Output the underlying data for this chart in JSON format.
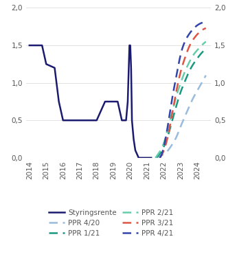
{
  "ylim": [
    0.0,
    2.0
  ],
  "xlim": [
    2013.8,
    2024.8
  ],
  "yticks": [
    0.0,
    0.5,
    1.0,
    1.5,
    2.0
  ],
  "xticks": [
    2014,
    2015,
    2016,
    2017,
    2018,
    2019,
    2020,
    2021,
    2022,
    2023,
    2024
  ],
  "styringsrente": {
    "x": [
      2014.0,
      2014.75,
      2015.0,
      2015.5,
      2015.75,
      2016.0,
      2016.5,
      2017.0,
      2017.5,
      2018.0,
      2018.5,
      2018.75,
      2019.0,
      2019.25,
      2019.5,
      2019.75,
      2019.85,
      2019.95,
      2020.0,
      2020.05,
      2020.1,
      2020.2,
      2020.3,
      2020.5,
      2020.75,
      2021.0,
      2021.25
    ],
    "y": [
      1.5,
      1.5,
      1.25,
      1.2,
      0.75,
      0.5,
      0.5,
      0.5,
      0.5,
      0.5,
      0.75,
      0.75,
      0.75,
      0.75,
      0.5,
      0.5,
      0.75,
      1.5,
      1.5,
      1.2,
      0.5,
      0.25,
      0.1,
      0.0,
      0.0,
      0.0,
      0.0
    ],
    "color": "#1a1a6e",
    "linewidth": 1.8
  },
  "ppr_420": {
    "label": "PPR 4/20",
    "x": [
      2021.5,
      2021.75,
      2022.0,
      2022.25,
      2022.5,
      2022.75,
      2023.0,
      2023.25,
      2023.5,
      2023.75,
      2024.0,
      2024.25,
      2024.5
    ],
    "y": [
      0.0,
      0.02,
      0.05,
      0.1,
      0.18,
      0.28,
      0.42,
      0.55,
      0.68,
      0.8,
      0.9,
      1.0,
      1.1
    ],
    "color": "#99bbdd",
    "linewidth": 1.8
  },
  "ppr_121": {
    "label": "PPR 1/21",
    "x": [
      2021.5,
      2021.75,
      2022.0,
      2022.25,
      2022.5,
      2022.75,
      2023.0,
      2023.25,
      2023.5,
      2023.75,
      2024.0,
      2024.25,
      2024.5
    ],
    "y": [
      0.0,
      0.05,
      0.15,
      0.3,
      0.5,
      0.7,
      0.88,
      1.02,
      1.15,
      1.25,
      1.33,
      1.4,
      1.45
    ],
    "color": "#1a9980",
    "linewidth": 1.8
  },
  "ppr_221": {
    "label": "PPR 2/21",
    "x": [
      2021.5,
      2021.75,
      2022.0,
      2022.25,
      2022.5,
      2022.75,
      2023.0,
      2023.25,
      2023.5,
      2023.75,
      2024.0,
      2024.25,
      2024.5
    ],
    "y": [
      0.0,
      0.08,
      0.2,
      0.4,
      0.62,
      0.83,
      1.0,
      1.15,
      1.27,
      1.37,
      1.44,
      1.5,
      1.55
    ],
    "color": "#66ccaa",
    "linewidth": 1.8
  },
  "ppr_321": {
    "label": "PPR 3/21",
    "x": [
      2021.75,
      2022.0,
      2022.25,
      2022.5,
      2022.75,
      2023.0,
      2023.25,
      2023.5,
      2023.75,
      2024.0,
      2024.25,
      2024.5
    ],
    "y": [
      0.0,
      0.1,
      0.3,
      0.6,
      0.9,
      1.15,
      1.33,
      1.48,
      1.58,
      1.65,
      1.7,
      1.73
    ],
    "color": "#dd5544",
    "linewidth": 1.8
  },
  "ppr_421": {
    "label": "PPR 4/21",
    "x": [
      2021.75,
      2022.0,
      2022.25,
      2022.5,
      2022.75,
      2023.0,
      2023.25,
      2023.5,
      2023.75,
      2024.0,
      2024.25,
      2024.5
    ],
    "y": [
      0.0,
      0.15,
      0.45,
      0.8,
      1.1,
      1.38,
      1.55,
      1.65,
      1.72,
      1.77,
      1.8,
      1.82
    ],
    "color": "#3344aa",
    "linewidth": 1.8
  },
  "background_color": "#ffffff",
  "grid_color": "#dddddd",
  "tick_color": "#555555",
  "label_fontsize": 7.5,
  "legend_fontsize": 7.5
}
